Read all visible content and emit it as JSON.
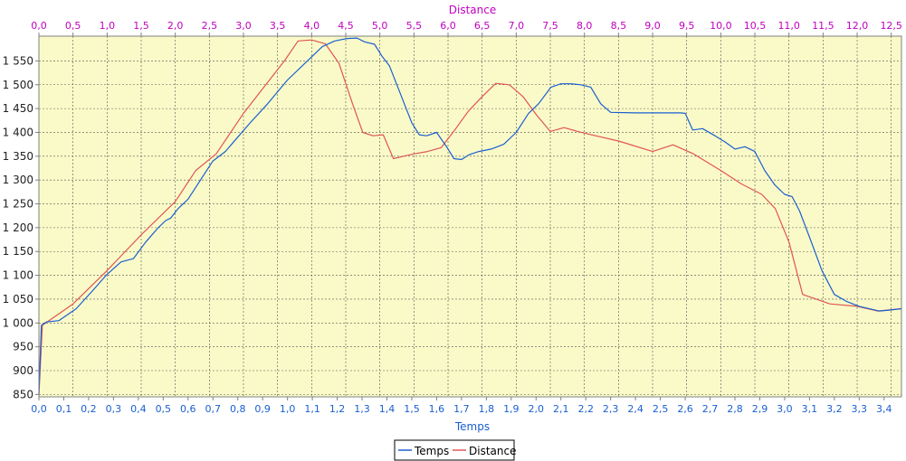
{
  "chart_data": {
    "type": "line",
    "background": "#fafac8",
    "grid": true,
    "legend_position": "bottom",
    "y_axis": {
      "range": [
        845,
        1602
      ],
      "ticks": [
        850,
        900,
        950,
        1000,
        1050,
        1100,
        1150,
        1200,
        1250,
        1300,
        1350,
        1400,
        1450,
        1500,
        1550
      ],
      "tick_labels": [
        "850",
        "900",
        "950",
        "1 000",
        "1 050",
        "1 100",
        "1 150",
        "1 200",
        "1 250",
        "1 300",
        "1 350",
        "1 400",
        "1 450",
        "1 500",
        "1 550"
      ]
    },
    "x_bottom": {
      "label": "Temps",
      "color": "#1a5fd0",
      "range": [
        0,
        3.47
      ],
      "ticks": [
        0.0,
        0.1,
        0.2,
        0.3,
        0.4,
        0.5,
        0.6,
        0.7,
        0.8,
        0.9,
        1.0,
        1.1,
        1.2,
        1.3,
        1.4,
        1.5,
        1.6,
        1.7,
        1.8,
        1.9,
        2.0,
        2.1,
        2.2,
        2.3,
        2.4,
        2.5,
        2.6,
        2.7,
        2.8,
        2.9,
        3.0,
        3.1,
        3.2,
        3.3,
        3.4
      ],
      "tick_labels": [
        "0,0",
        "0,1",
        "0,2",
        "0,3",
        "0,4",
        "0,5",
        "0,6",
        "0,7",
        "0,8",
        "0,9",
        "1,0",
        "1,1",
        "1,2",
        "1,3",
        "1,4",
        "1,5",
        "1,6",
        "1,7",
        "1,8",
        "1,9",
        "2,0",
        "2,1",
        "2,2",
        "2,3",
        "2,4",
        "2,5",
        "2,6",
        "2,7",
        "2,8",
        "2,9",
        "3,0",
        "3,1",
        "3,2",
        "3,3",
        "3,4"
      ]
    },
    "x_top": {
      "label": "Distance",
      "color": "#c000c0",
      "range": [
        0,
        12.65
      ],
      "ticks": [
        0.0,
        0.5,
        1.0,
        1.5,
        2.0,
        2.5,
        3.0,
        3.5,
        4.0,
        4.5,
        5.0,
        5.5,
        6.0,
        6.5,
        7.0,
        7.5,
        8.0,
        8.5,
        9.0,
        9.5,
        10.0,
        10.5,
        11.0,
        11.5,
        12.0,
        12.5
      ],
      "tick_labels": [
        "0,0",
        "0,5",
        "1,0",
        "1,5",
        "2,0",
        "2,5",
        "3,0",
        "3,5",
        "4,0",
        "4,5",
        "5,0",
        "5,5",
        "6,0",
        "6,5",
        "7,0",
        "7,5",
        "8,0",
        "8,5",
        "9,0",
        "9,5",
        "10,0",
        "10,5",
        "11,0",
        "11,5",
        "12,0",
        "12,5"
      ]
    },
    "series": [
      {
        "name": "Temps",
        "axis": "x_bottom",
        "color": "#1a5fd0",
        "x": [
          0.0,
          0.01,
          0.03,
          0.08,
          0.15,
          0.22,
          0.27,
          0.33,
          0.38,
          0.43,
          0.48,
          0.51,
          0.53,
          0.56,
          0.6,
          0.65,
          0.7,
          0.75,
          0.8,
          0.85,
          0.92,
          1.0,
          1.08,
          1.14,
          1.19,
          1.24,
          1.28,
          1.31,
          1.35,
          1.38,
          1.41,
          1.44,
          1.47,
          1.5,
          1.53,
          1.56,
          1.6,
          1.64,
          1.67,
          1.7,
          1.73,
          1.77,
          1.82,
          1.87,
          1.92,
          1.97,
          2.01,
          2.06,
          2.1,
          2.14,
          2.18,
          2.22,
          2.26,
          2.3,
          2.4,
          2.5,
          2.58,
          2.6,
          2.63,
          2.67,
          2.72,
          2.76,
          2.8,
          2.84,
          2.88,
          2.92,
          2.96,
          3.0,
          3.03,
          3.06,
          3.1,
          3.15,
          3.2,
          3.25,
          3.3,
          3.38,
          3.42,
          3.47
        ],
        "y": [
          850,
          995,
          1002,
          1005,
          1030,
          1070,
          1100,
          1128,
          1135,
          1170,
          1200,
          1215,
          1220,
          1240,
          1260,
          1300,
          1340,
          1360,
          1390,
          1420,
          1460,
          1510,
          1550,
          1580,
          1592,
          1597,
          1598,
          1590,
          1585,
          1560,
          1540,
          1500,
          1460,
          1420,
          1395,
          1393,
          1400,
          1370,
          1345,
          1343,
          1353,
          1360,
          1365,
          1375,
          1400,
          1440,
          1460,
          1495,
          1502,
          1502,
          1500,
          1495,
          1460,
          1442,
          1441,
          1441,
          1441,
          1440,
          1405,
          1408,
          1393,
          1380,
          1365,
          1370,
          1360,
          1320,
          1290,
          1270,
          1265,
          1235,
          1180,
          1110,
          1060,
          1045,
          1035,
          1025,
          1027,
          1030
        ]
      },
      {
        "name": "Distance",
        "axis": "x_top",
        "color": "#e05555",
        "x": [
          0.0,
          0.05,
          0.2,
          0.5,
          1.0,
          1.5,
          2.0,
          2.3,
          2.6,
          3.0,
          3.3,
          3.6,
          3.8,
          4.0,
          4.2,
          4.4,
          4.6,
          4.75,
          4.9,
          5.05,
          5.2,
          5.35,
          5.5,
          5.7,
          5.9,
          6.1,
          6.3,
          6.5,
          6.7,
          6.9,
          7.1,
          7.3,
          7.5,
          7.7,
          7.9,
          8.1,
          8.5,
          9.0,
          9.3,
          9.6,
          10.0,
          10.3,
          10.6,
          10.8,
          11.0,
          11.2,
          11.4,
          11.6,
          12.0,
          12.3,
          12.65
        ],
        "y": [
          850,
          995,
          1010,
          1040,
          1110,
          1185,
          1255,
          1320,
          1355,
          1440,
          1495,
          1550,
          1592,
          1594,
          1586,
          1545,
          1460,
          1400,
          1393,
          1395,
          1345,
          1350,
          1355,
          1360,
          1368,
          1405,
          1445,
          1475,
          1503,
          1500,
          1475,
          1436,
          1402,
          1410,
          1402,
          1395,
          1382,
          1360,
          1374,
          1355,
          1320,
          1292,
          1270,
          1240,
          1170,
          1060,
          1050,
          1040,
          1035,
          1025,
          1030
        ]
      }
    ]
  }
}
